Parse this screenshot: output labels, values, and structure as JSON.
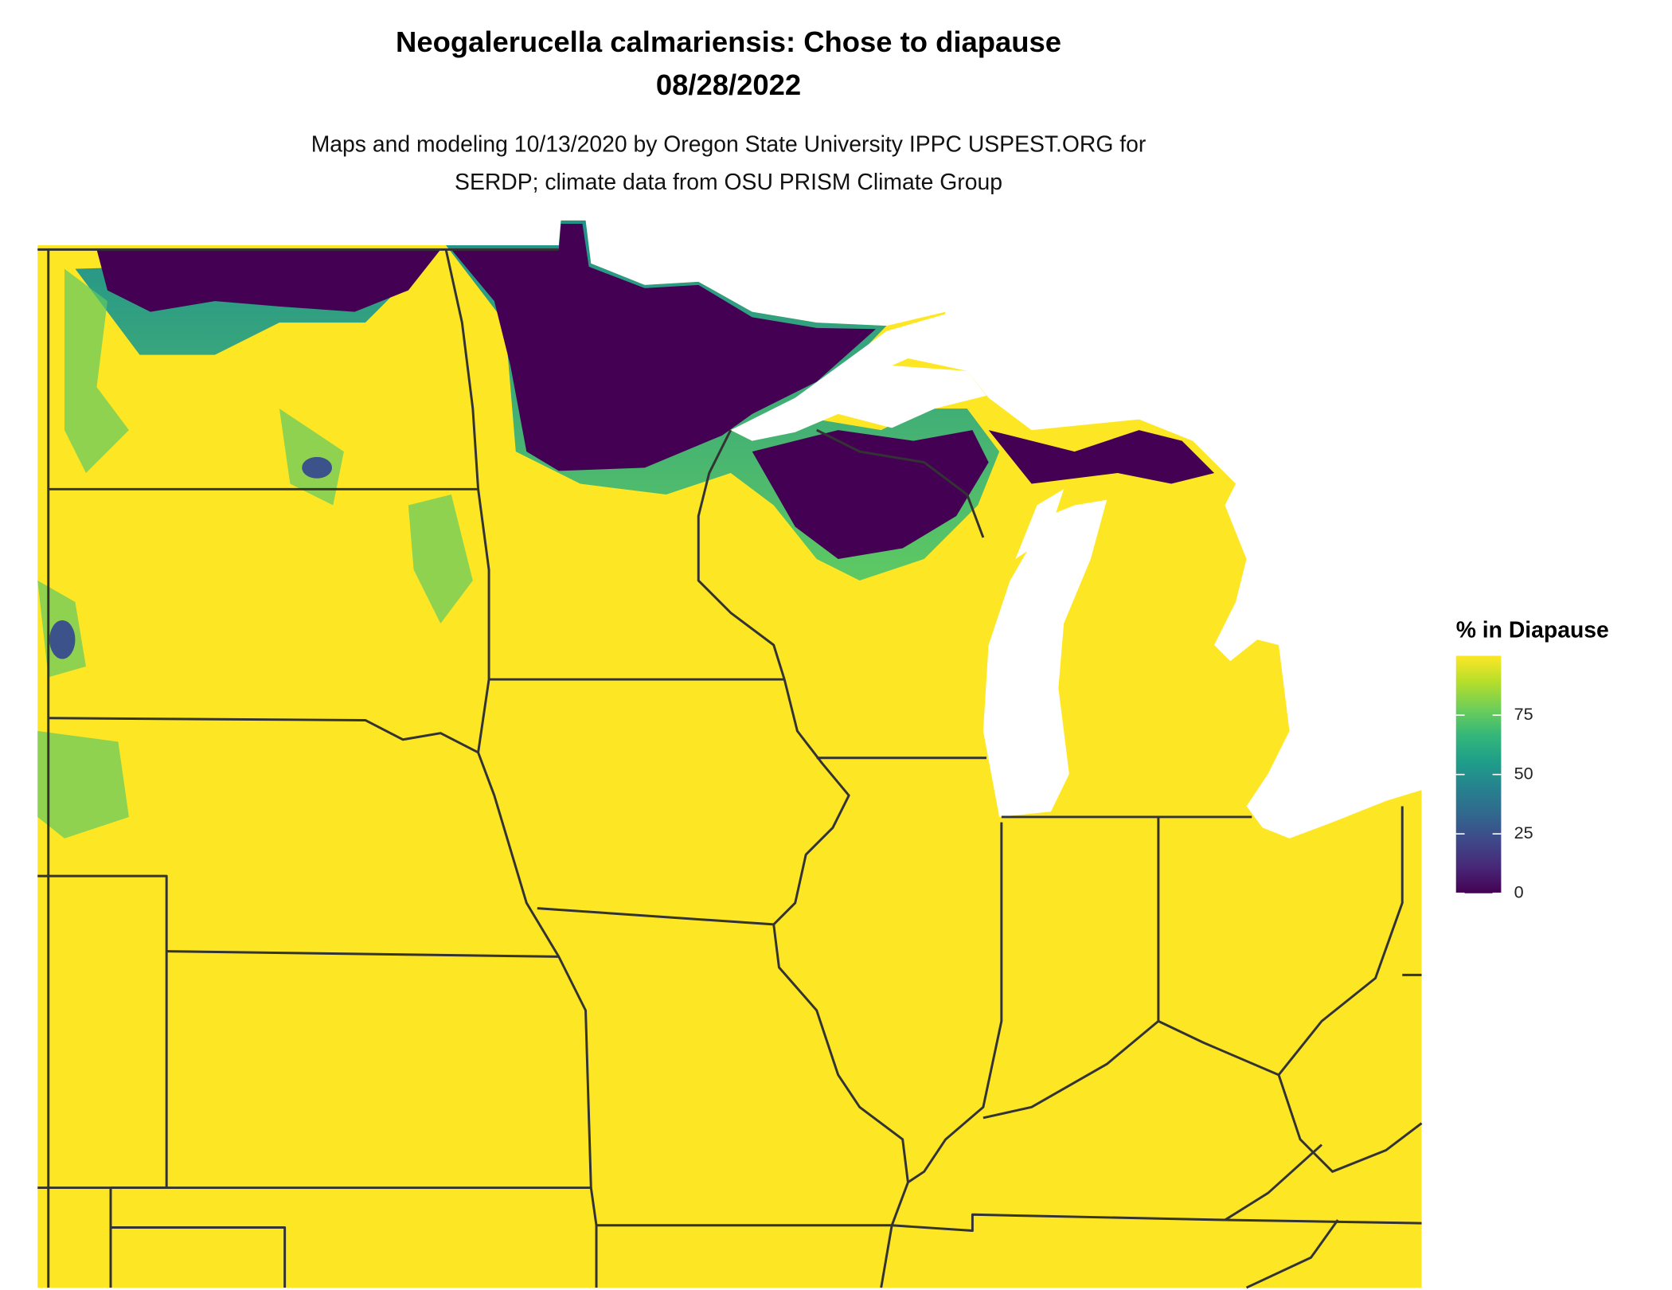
{
  "title": "Neogalerucella calmariensis: Chose to diapause",
  "date": "08/28/2022",
  "subtitle": [
    "Maps and modeling 10/13/2020 by Oregon State University IPPC USPEST.ORG for",
    "SERDP; climate data from OSU PRISM Climate Group"
  ],
  "legend": {
    "title": "% in Diapause",
    "colormap": "viridis",
    "lim": [
      0,
      100
    ],
    "ticks": [
      0,
      25,
      50,
      75
    ]
  }
}
